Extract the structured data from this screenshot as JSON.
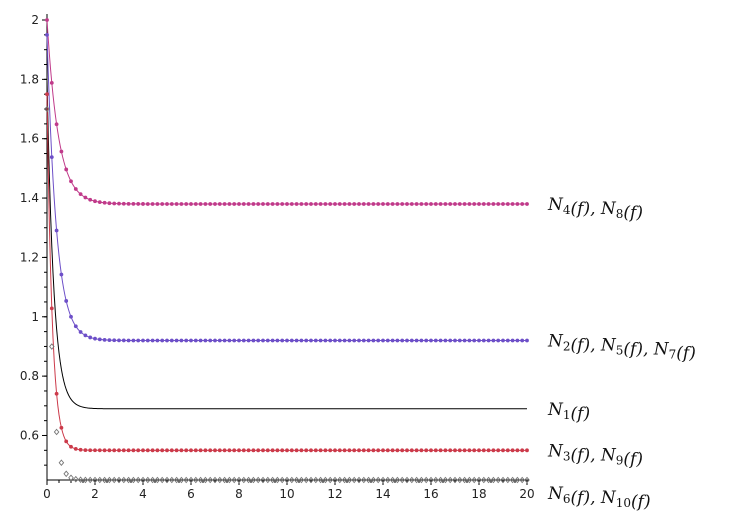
{
  "chart_data": {
    "type": "line",
    "xlim": [
      0,
      20
    ],
    "ylim": [
      0.45,
      2.0
    ],
    "x_ticks": [
      "0",
      "2",
      "4",
      "6",
      "8",
      "10",
      "12",
      "14",
      "16",
      "18",
      "20"
    ],
    "y_ticks": [
      "0.6",
      "0.8",
      "1",
      "1.2",
      "1.4",
      "1.6",
      "1.8",
      "2"
    ],
    "grid": false,
    "colors": {
      "axis": "#000000",
      "magenta_series": "#c03a8a",
      "violet_series": "#6d4fc8",
      "black_series": "#000000",
      "red_series": "#cc3a4a",
      "gray_series": "#777777"
    },
    "series": [
      {
        "name": "N4(f), N8(f)",
        "style": "magenta-dotted",
        "start": 2.0,
        "plateau": 1.38,
        "settle_x": 2.2
      },
      {
        "name": "N2(f), N5(f), N7(f)",
        "style": "violet-dotted",
        "start": 1.95,
        "plateau": 0.92,
        "settle_x": 1.8
      },
      {
        "name": "N1(f)",
        "style": "black-solid",
        "start": 1.8,
        "plateau": 0.69,
        "settle_x": 1.3
      },
      {
        "name": "N3(f), N9(f)",
        "style": "red-dotted",
        "start": 1.75,
        "plateau": 0.55,
        "settle_x": 1.0
      },
      {
        "name": "N6(f), N10(f)",
        "style": "gray-diamonds",
        "start": 1.7,
        "plateau": 0.45,
        "settle_x": 0.9
      }
    ],
    "labels": [
      {
        "main": "N",
        "sub1": "4",
        "mid": "(f), N",
        "sub2": "8",
        "end": "(f)"
      },
      {
        "main": "N",
        "sub1": "2",
        "mid": "(f), N",
        "sub2": "5",
        "mid2": "(f), N",
        "sub3": "7",
        "end": "(f)"
      },
      {
        "main": "N",
        "sub1": "1",
        "end": "(f)"
      },
      {
        "main": "N",
        "sub1": "3",
        "mid": "(f), N",
        "sub2": "9",
        "end": "(f)"
      },
      {
        "main": "N",
        "sub1": "6",
        "mid": "(f), N",
        "sub2": "10",
        "end": "(f)"
      }
    ]
  }
}
